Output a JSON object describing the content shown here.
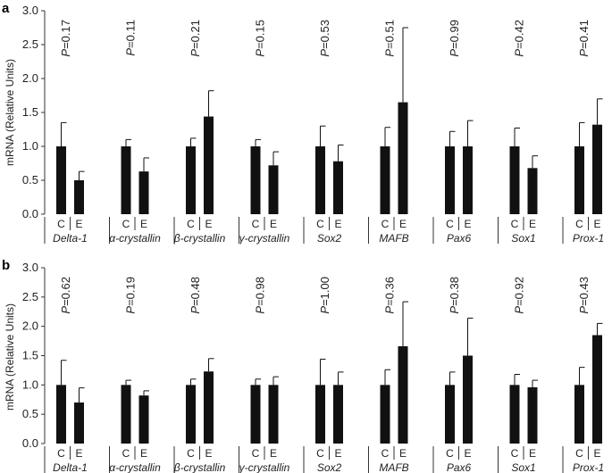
{
  "chart_data": [
    {
      "type": "bar",
      "panel": "a",
      "ylabel": "mRNA (Relative Units)",
      "ylim": [
        0,
        3.0
      ],
      "yticks": [
        "0.0",
        "0.5",
        "1.0",
        "1.5",
        "2.0",
        "2.5",
        "3.0"
      ],
      "conditions": [
        "C",
        "E"
      ],
      "groups": [
        {
          "label": "Delta-1",
          "values": [
            1.0,
            0.5
          ],
          "errors": [
            0.35,
            0.13
          ],
          "p": "0.17"
        },
        {
          "label": "α-crystallin",
          "values": [
            1.0,
            0.63
          ],
          "errors": [
            0.1,
            0.2
          ],
          "p": "0.11"
        },
        {
          "label": "β-crystallin",
          "values": [
            1.0,
            1.44
          ],
          "errors": [
            0.12,
            0.38
          ],
          "p": "0.21"
        },
        {
          "label": "γ-crystallin",
          "values": [
            1.0,
            0.72
          ],
          "errors": [
            0.1,
            0.2
          ],
          "p": "0.15"
        },
        {
          "label": "Sox2",
          "values": [
            1.0,
            0.78
          ],
          "errors": [
            0.3,
            0.24
          ],
          "p": "0.53"
        },
        {
          "label": "MAFB",
          "values": [
            1.0,
            1.65
          ],
          "errors": [
            0.28,
            1.1
          ],
          "p": "0.51"
        },
        {
          "label": "Pax6",
          "values": [
            1.0,
            1.0
          ],
          "errors": [
            0.22,
            0.38
          ],
          "p": "0.99"
        },
        {
          "label": "Sox1",
          "values": [
            1.0,
            0.68
          ],
          "errors": [
            0.27,
            0.18
          ],
          "p": "0.42"
        },
        {
          "label": "Prox-1",
          "values": [
            1.0,
            1.32
          ],
          "errors": [
            0.35,
            0.38
          ],
          "p": "0.41"
        }
      ]
    },
    {
      "type": "bar",
      "panel": "b",
      "ylabel": "mRNA (Relative Units)",
      "ylim": [
        0,
        3.0
      ],
      "yticks": [
        "0.0",
        "0.5",
        "1.0",
        "1.5",
        "2.0",
        "2.5",
        "3.0"
      ],
      "conditions": [
        "C",
        "E"
      ],
      "groups": [
        {
          "label": "Delta-1",
          "values": [
            1.0,
            0.7
          ],
          "errors": [
            0.42,
            0.25
          ],
          "p": "0.62"
        },
        {
          "label": "α-crystallin",
          "values": [
            1.0,
            0.82
          ],
          "errors": [
            0.08,
            0.08
          ],
          "p": "0.19"
        },
        {
          "label": "β-crystallin",
          "values": [
            1.0,
            1.23
          ],
          "errors": [
            0.1,
            0.22
          ],
          "p": "0.48"
        },
        {
          "label": "γ-crystallin",
          "values": [
            1.0,
            1.0
          ],
          "errors": [
            0.1,
            0.14
          ],
          "p": "0.98"
        },
        {
          "label": "Sox2",
          "values": [
            1.0,
            1.0
          ],
          "errors": [
            0.44,
            0.22
          ],
          "p": "1.00"
        },
        {
          "label": "MAFB",
          "values": [
            1.0,
            1.66
          ],
          "errors": [
            0.26,
            0.76
          ],
          "p": "0.36"
        },
        {
          "label": "Pax6",
          "values": [
            1.0,
            1.5
          ],
          "errors": [
            0.22,
            0.64
          ],
          "p": "0.38"
        },
        {
          "label": "Sox1",
          "values": [
            1.0,
            0.96
          ],
          "errors": [
            0.18,
            0.12
          ],
          "p": "0.92"
        },
        {
          "label": "Prox-1",
          "values": [
            1.0,
            1.85
          ],
          "errors": [
            0.3,
            0.2
          ],
          "p": "0.43"
        }
      ]
    }
  ],
  "colors": {
    "bar": "#111111",
    "axis": "#333333"
  }
}
